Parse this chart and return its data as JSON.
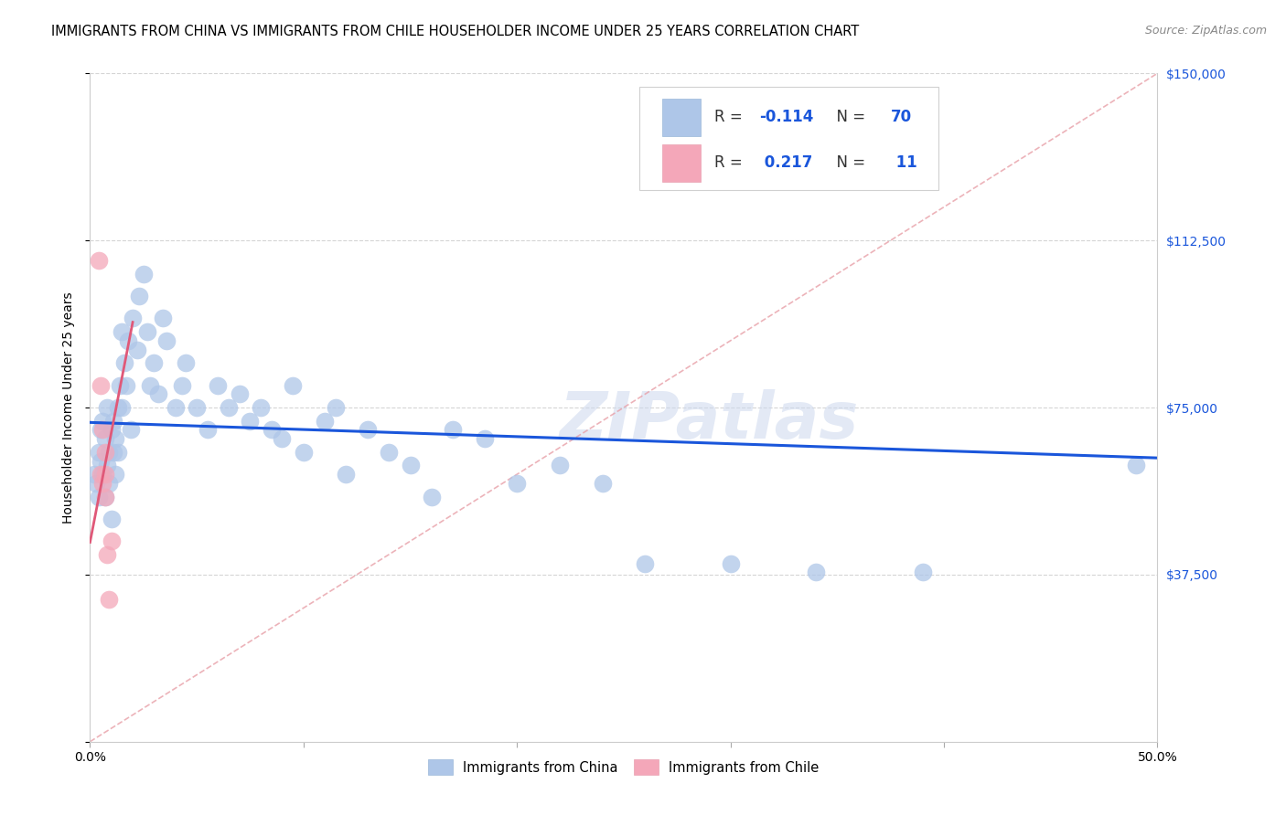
{
  "title": "IMMIGRANTS FROM CHINA VS IMMIGRANTS FROM CHILE HOUSEHOLDER INCOME UNDER 25 YEARS CORRELATION CHART",
  "source": "Source: ZipAtlas.com",
  "ylabel": "Householder Income Under 25 years",
  "xlim": [
    0,
    0.5
  ],
  "ylim": [
    0,
    150000
  ],
  "yticks": [
    0,
    37500,
    75000,
    112500,
    150000
  ],
  "xticks": [
    0.0,
    0.1,
    0.2,
    0.3,
    0.4,
    0.5
  ],
  "china_R": -0.114,
  "china_N": 70,
  "chile_R": 0.217,
  "chile_N": 11,
  "china_color": "#aec6e8",
  "chile_color": "#f4a7b9",
  "china_line_color": "#1a56db",
  "chile_line_color": "#e05878",
  "ref_line_color": "#e8a0a8",
  "watermark": "ZIPatlas",
  "background_color": "#ffffff",
  "china_points_x": [
    0.002,
    0.003,
    0.004,
    0.004,
    0.005,
    0.005,
    0.006,
    0.006,
    0.007,
    0.007,
    0.008,
    0.008,
    0.009,
    0.009,
    0.01,
    0.01,
    0.011,
    0.011,
    0.012,
    0.012,
    0.013,
    0.013,
    0.014,
    0.015,
    0.015,
    0.016,
    0.017,
    0.018,
    0.019,
    0.02,
    0.022,
    0.023,
    0.025,
    0.027,
    0.028,
    0.03,
    0.032,
    0.034,
    0.036,
    0.04,
    0.043,
    0.045,
    0.05,
    0.055,
    0.06,
    0.065,
    0.07,
    0.075,
    0.08,
    0.085,
    0.09,
    0.095,
    0.1,
    0.11,
    0.115,
    0.12,
    0.13,
    0.14,
    0.15,
    0.16,
    0.17,
    0.185,
    0.2,
    0.22,
    0.24,
    0.26,
    0.3,
    0.34,
    0.39,
    0.49
  ],
  "china_points_y": [
    60000,
    58000,
    65000,
    55000,
    70000,
    63000,
    72000,
    60000,
    68000,
    55000,
    75000,
    62000,
    65000,
    58000,
    70000,
    50000,
    72000,
    65000,
    68000,
    60000,
    75000,
    65000,
    80000,
    92000,
    75000,
    85000,
    80000,
    90000,
    70000,
    95000,
    88000,
    100000,
    105000,
    92000,
    80000,
    85000,
    78000,
    95000,
    90000,
    75000,
    80000,
    85000,
    75000,
    70000,
    80000,
    75000,
    78000,
    72000,
    75000,
    70000,
    68000,
    80000,
    65000,
    72000,
    75000,
    60000,
    70000,
    65000,
    62000,
    55000,
    70000,
    68000,
    58000,
    62000,
    58000,
    40000,
    40000,
    38000,
    38000,
    62000
  ],
  "chile_points_x": [
    0.004,
    0.005,
    0.005,
    0.006,
    0.006,
    0.007,
    0.007,
    0.007,
    0.008,
    0.009,
    0.01
  ],
  "chile_points_y": [
    108000,
    80000,
    60000,
    70000,
    58000,
    65000,
    60000,
    55000,
    42000,
    32000,
    45000
  ],
  "marker_size": 200,
  "title_fontsize": 10.5,
  "source_fontsize": 9,
  "axis_fontsize": 10,
  "legend_fontsize": 12
}
